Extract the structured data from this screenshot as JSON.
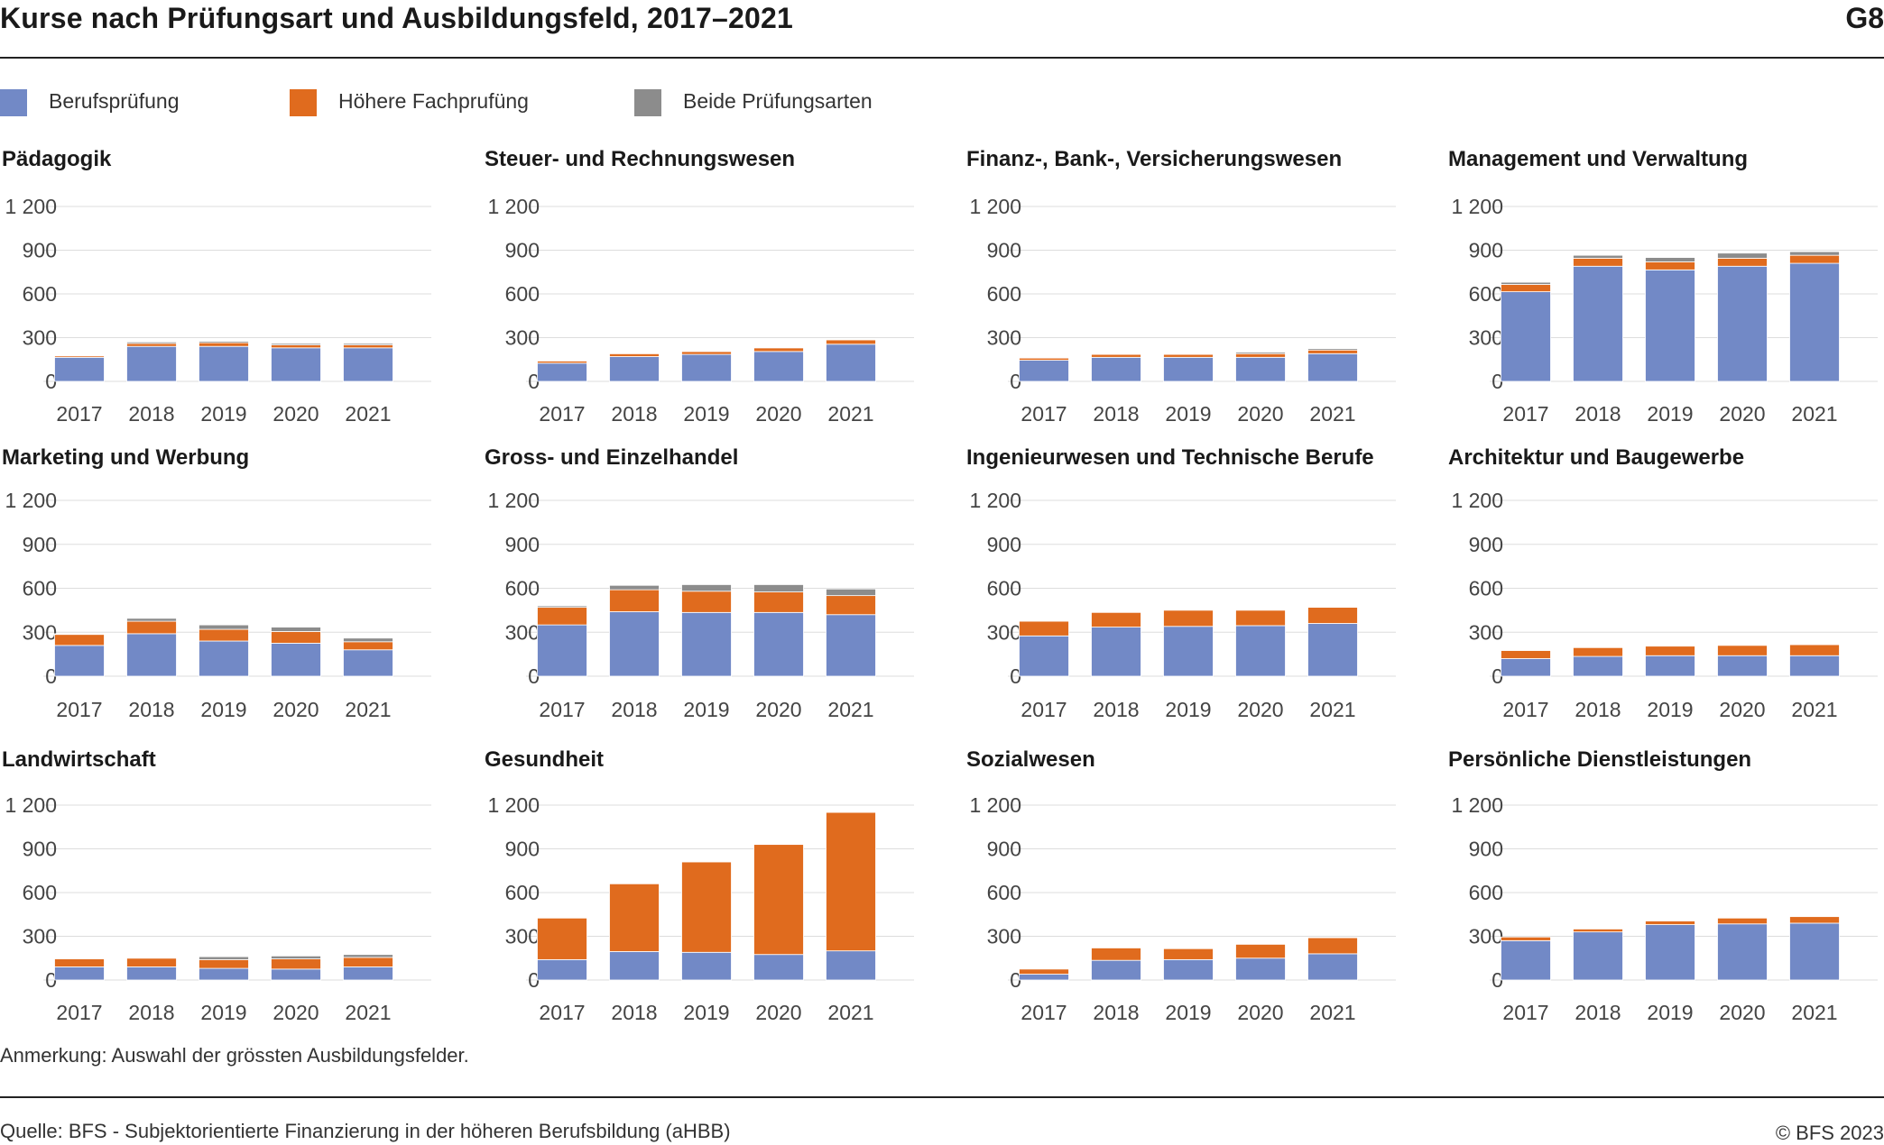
{
  "header": {
    "title": "Kurse nach Prüfungsart und Ausbildungsfeld, 2017–2021",
    "graphic_id": "G8"
  },
  "legend": [
    {
      "label": "Berufsprüfung",
      "color": "#7289c6"
    },
    {
      "label": "Höhere Fachprufüng",
      "color": "#e06b1e"
    },
    {
      "label": "Beide Prüfungsarten",
      "color": "#8c8c8c"
    }
  ],
  "chart_data": {
    "type": "bar",
    "stacked": true,
    "categories": [
      "2017",
      "2018",
      "2019",
      "2020",
      "2021"
    ],
    "y_ticks": [
      "1 200",
      "900",
      "600",
      "300",
      "0"
    ],
    "ylim": [
      0,
      1200
    ],
    "series_colors": [
      "#7289c6",
      "#e06b1e",
      "#8c8c8c"
    ],
    "panels": [
      {
        "title": "Pädagogik",
        "series": [
          {
            "values": [
              165,
              240,
              240,
              230,
              230
            ]
          },
          {
            "values": [
              10,
              20,
              25,
              20,
              20
            ]
          },
          {
            "values": [
              5,
              10,
              10,
              10,
              10
            ]
          }
        ]
      },
      {
        "title": "Steuer- und Rechnungswesen",
        "series": [
          {
            "values": [
              125,
              170,
              185,
              205,
              255
            ]
          },
          {
            "values": [
              15,
              20,
              20,
              25,
              30
            ]
          },
          {
            "values": [
              5,
              5,
              5,
              5,
              5
            ]
          }
        ]
      },
      {
        "title": "Finanz-, Bank-, Versicherungswesen",
        "series": [
          {
            "values": [
              145,
              165,
              165,
              165,
              190
            ]
          },
          {
            "values": [
              15,
              20,
              20,
              25,
              25
            ]
          },
          {
            "values": [
              5,
              5,
              5,
              10,
              10
            ]
          }
        ]
      },
      {
        "title": "Management und Verwaltung",
        "series": [
          {
            "values": [
              615,
              790,
              765,
              790,
              810
            ]
          },
          {
            "values": [
              50,
              55,
              55,
              55,
              55
            ]
          },
          {
            "values": [
              15,
              20,
              30,
              35,
              25
            ]
          }
        ]
      },
      {
        "title": "Marketing und Werbung",
        "series": [
          {
            "values": [
              210,
              290,
              240,
              225,
              180
            ]
          },
          {
            "values": [
              75,
              85,
              80,
              80,
              55
            ]
          },
          {
            "values": [
              5,
              20,
              30,
              30,
              25
            ]
          }
        ]
      },
      {
        "title": "Gross- und Einzelhandel",
        "series": [
          {
            "values": [
              350,
              440,
              435,
              435,
              420
            ]
          },
          {
            "values": [
              120,
              150,
              145,
              140,
              130
            ]
          },
          {
            "values": [
              10,
              30,
              45,
              50,
              45
            ]
          }
        ]
      },
      {
        "title": "Ingenieurwesen und Technische Berufe",
        "series": [
          {
            "values": [
              275,
              335,
              340,
              345,
              360
            ]
          },
          {
            "values": [
              100,
              100,
              110,
              105,
              110
            ]
          },
          {
            "values": [
              0,
              0,
              0,
              0,
              0
            ]
          }
        ]
      },
      {
        "title": "Architektur und Baugewerbe",
        "series": [
          {
            "values": [
              120,
              135,
              140,
              140,
              140
            ]
          },
          {
            "values": [
              55,
              60,
              65,
              70,
              75
            ]
          },
          {
            "values": [
              0,
              0,
              0,
              0,
              0
            ]
          }
        ]
      },
      {
        "title": "Landwirtschaft",
        "series": [
          {
            "values": [
              90,
              90,
              80,
              75,
              90
            ]
          },
          {
            "values": [
              55,
              60,
              60,
              70,
              65
            ]
          },
          {
            "values": [
              5,
              5,
              20,
              20,
              20
            ]
          }
        ]
      },
      {
        "title": "Gesundheit",
        "series": [
          {
            "values": [
              140,
              195,
              190,
              175,
              200
            ]
          },
          {
            "values": [
              285,
              465,
              620,
              755,
              950
            ]
          },
          {
            "values": [
              0,
              0,
              0,
              0,
              0
            ]
          }
        ]
      },
      {
        "title": "Sozialwesen",
        "series": [
          {
            "values": [
              40,
              135,
              140,
              150,
              180
            ]
          },
          {
            "values": [
              35,
              85,
              75,
              95,
              110
            ]
          },
          {
            "values": [
              0,
              0,
              0,
              0,
              0
            ]
          }
        ]
      },
      {
        "title": "Persönliche Dienstleistungen",
        "series": [
          {
            "values": [
              270,
              330,
              380,
              385,
              390
            ]
          },
          {
            "values": [
              25,
              20,
              25,
              40,
              45
            ]
          },
          {
            "values": [
              0,
              0,
              0,
              0,
              0
            ]
          }
        ]
      }
    ]
  },
  "footer": {
    "note": "Anmerkung: Auswahl der grössten Ausbildungsfelder.",
    "source": "Quelle: BFS - Subjektorientierte Finanzierung in der höheren Berufsbildung (aHBB)",
    "copyright": "© BFS 2023"
  }
}
